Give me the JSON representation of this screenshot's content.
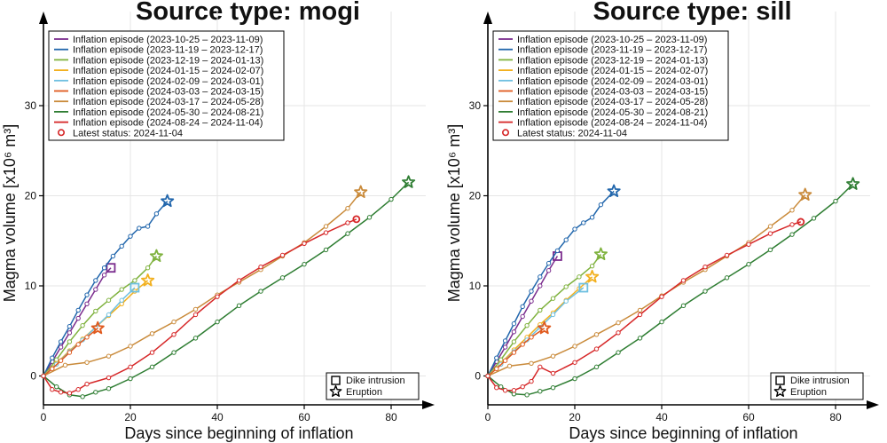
{
  "chart_data": [
    {
      "type": "line",
      "title": "Source type: mogi",
      "xlabel": "Days since beginning of inflation",
      "ylabel": "Magma volume [x10⁶ m³]",
      "xlim": [
        0,
        90
      ],
      "ylim": [
        -3,
        41
      ],
      "xticks": [
        0,
        20,
        40,
        60,
        80
      ],
      "yticks": [
        0,
        10,
        20,
        30
      ],
      "grid": true,
      "legend_position": "top-left",
      "series": [
        {
          "name": "Inflation episode (2023-10-25 – 2023-11-09)",
          "color": "#7b2d8e",
          "end_marker": "square",
          "x": [
            0,
            2,
            4,
            6,
            8,
            10,
            12,
            14,
            15.5
          ],
          "y": [
            0,
            1.6,
            3.2,
            4.8,
            6.4,
            8.0,
            9.6,
            11.2,
            12.0
          ]
        },
        {
          "name": "Inflation episode (2023-11-19 – 2023-12-17)",
          "color": "#2166ac",
          "end_marker": "star",
          "x": [
            0,
            2,
            4,
            6,
            8,
            10,
            12,
            14,
            16,
            18,
            20,
            22,
            24,
            26,
            28.5
          ],
          "y": [
            0,
            2.0,
            3.8,
            5.5,
            7.3,
            9.0,
            10.6,
            12.0,
            13.3,
            14.4,
            15.5,
            16.4,
            16.6,
            18.0,
            19.4
          ]
        },
        {
          "name": "Inflation episode (2023-12-19 – 2024-01-13)",
          "color": "#7fb23e",
          "end_marker": "star",
          "x": [
            0,
            3,
            6,
            9,
            12,
            15,
            18,
            21,
            24,
            26
          ],
          "y": [
            0,
            1.8,
            3.8,
            5.6,
            7.2,
            8.4,
            9.6,
            10.6,
            12.0,
            13.3
          ]
        },
        {
          "name": "Inflation episode (2024-01-15 – 2024-02-07)",
          "color": "#f2b01e",
          "end_marker": "star",
          "x": [
            0,
            3,
            6,
            9,
            12,
            15,
            18,
            21,
            24
          ],
          "y": [
            0,
            1.4,
            2.8,
            4.1,
            5.4,
            6.7,
            8.0,
            9.4,
            10.6
          ]
        },
        {
          "name": "Inflation episode (2024-02-09 – 2024-03-01)",
          "color": "#6fc0e0",
          "end_marker": "square",
          "x": [
            0,
            3,
            6,
            9,
            12,
            15,
            18,
            21
          ],
          "y": [
            0,
            1.3,
            2.7,
            4.0,
            5.4,
            6.8,
            8.4,
            9.8
          ]
        },
        {
          "name": "Inflation episode (2024-03-03 – 2024-03-15)",
          "color": "#e05a1e",
          "end_marker": "star",
          "x": [
            0,
            2,
            4,
            6,
            8,
            10,
            12.5
          ],
          "y": [
            0,
            0.8,
            1.7,
            2.6,
            3.5,
            4.3,
            5.3
          ]
        },
        {
          "name": "Inflation episode (2024-03-17 – 2024-05-28)",
          "color": "#c98a3a",
          "end_marker": "star",
          "x": [
            0,
            5,
            10,
            15,
            20,
            25,
            30,
            35,
            40,
            45,
            50,
            55,
            60,
            65,
            70,
            73
          ],
          "y": [
            0,
            1.2,
            1.5,
            2.2,
            3.3,
            4.7,
            6.0,
            7.4,
            9.0,
            10.4,
            11.8,
            13.3,
            14.8,
            16.6,
            18.6,
            20.4
          ]
        },
        {
          "name": "Inflation episode (2024-05-30 – 2024-08-21)",
          "color": "#2e7d32",
          "end_marker": "star",
          "x": [
            0,
            3,
            6,
            9,
            12,
            15,
            20,
            25,
            30,
            35,
            40,
            45,
            50,
            55,
            60,
            65,
            70,
            75,
            80,
            84
          ],
          "y": [
            0,
            -1.2,
            -2.1,
            -2.3,
            -1.8,
            -1.4,
            -0.3,
            1.0,
            2.6,
            4.2,
            6.0,
            7.8,
            9.4,
            10.9,
            12.4,
            14.0,
            15.8,
            17.6,
            19.6,
            21.5
          ]
        },
        {
          "name": "Inflation episode (2024-08-24 – 2024-11-04)",
          "color": "#d62728",
          "end_marker": "circle",
          "x": [
            0,
            2,
            4,
            6,
            8,
            10,
            15,
            20,
            25,
            30,
            35,
            40,
            45,
            50,
            55,
            60,
            65,
            70,
            72
          ],
          "y": [
            0,
            -1.5,
            -1.8,
            -1.9,
            -1.5,
            -0.9,
            -0.2,
            1.0,
            2.6,
            4.6,
            6.8,
            8.8,
            10.6,
            12.1,
            13.4,
            14.7,
            15.9,
            17.0,
            17.4
          ]
        }
      ],
      "legend_extra": "Latest status: 2024-11-04",
      "marker_legend": {
        "dike_intrusion": "Dike intrusion",
        "eruption": "Eruption"
      }
    },
    {
      "type": "line",
      "title": "Source type: sill",
      "xlabel": "Days since beginning of inflation",
      "ylabel": "Magma volume [x10⁶ m³]",
      "xlim": [
        0,
        90
      ],
      "ylim": [
        -3,
        41
      ],
      "xticks": [
        0,
        20,
        40,
        60,
        80
      ],
      "yticks": [
        0,
        10,
        20,
        30
      ],
      "grid": true,
      "legend_position": "top-left",
      "series": [
        {
          "name": "Inflation episode (2023-10-25 – 2023-11-09)",
          "color": "#7b2d8e",
          "end_marker": "square",
          "x": [
            0,
            2,
            4,
            6,
            8,
            10,
            12,
            14,
            16
          ],
          "y": [
            0,
            1.6,
            3.2,
            4.9,
            6.6,
            8.3,
            10.0,
            11.7,
            13.3
          ]
        },
        {
          "name": "Inflation episode (2023-11-19 – 2023-12-17)",
          "color": "#2166ac",
          "end_marker": "star",
          "x": [
            0,
            2,
            4,
            6,
            8,
            10,
            12,
            14,
            16,
            18,
            20,
            22,
            24,
            26,
            29
          ],
          "y": [
            0,
            2.0,
            3.9,
            5.8,
            7.7,
            9.4,
            11.0,
            12.5,
            13.9,
            15.1,
            16.3,
            17.0,
            17.6,
            19.0,
            20.5
          ]
        },
        {
          "name": "Inflation episode (2023-12-19 – 2024-01-13)",
          "color": "#7fb23e",
          "end_marker": "star",
          "x": [
            0,
            3,
            6,
            9,
            12,
            15,
            18,
            21,
            24,
            26
          ],
          "y": [
            0,
            1.8,
            3.8,
            5.6,
            7.3,
            8.6,
            9.9,
            11.0,
            12.2,
            13.5
          ]
        },
        {
          "name": "Inflation episode (2024-01-15 – 2024-02-07)",
          "color": "#f2b01e",
          "end_marker": "star",
          "x": [
            0,
            3,
            6,
            9,
            12,
            15,
            18,
            21,
            24
          ],
          "y": [
            0,
            1.4,
            2.9,
            4.3,
            5.7,
            7.0,
            8.4,
            9.7,
            11.0
          ]
        },
        {
          "name": "Inflation episode (2024-02-09 – 2024-03-01)",
          "color": "#6fc0e0",
          "end_marker": "square",
          "x": [
            0,
            3,
            6,
            9,
            12,
            15,
            18,
            22
          ],
          "y": [
            0,
            1.3,
            2.7,
            4.0,
            5.4,
            6.8,
            8.3,
            9.8
          ]
        },
        {
          "name": "Inflation episode (2024-03-03 – 2024-03-15)",
          "color": "#e05a1e",
          "end_marker": "star",
          "x": [
            0,
            2,
            4,
            6,
            8,
            10,
            13
          ],
          "y": [
            0,
            0.8,
            1.7,
            2.6,
            3.5,
            4.3,
            5.3
          ]
        },
        {
          "name": "Inflation episode (2024-03-17 – 2024-05-28)",
          "color": "#c98a3a",
          "end_marker": "star",
          "x": [
            0,
            5,
            10,
            15,
            20,
            25,
            30,
            35,
            40,
            45,
            50,
            55,
            60,
            65,
            70,
            73
          ],
          "y": [
            0,
            1.1,
            1.4,
            2.2,
            3.3,
            4.6,
            5.9,
            7.3,
            8.9,
            10.4,
            11.8,
            13.3,
            14.8,
            16.6,
            18.4,
            20.1
          ]
        },
        {
          "name": "Inflation episode (2024-05-30 – 2024-08-21)",
          "color": "#2e7d32",
          "end_marker": "star",
          "x": [
            0,
            3,
            6,
            9,
            12,
            15,
            20,
            25,
            30,
            35,
            40,
            45,
            50,
            55,
            60,
            65,
            70,
            75,
            80,
            84
          ],
          "y": [
            0,
            -1.2,
            -2.0,
            -2.1,
            -1.7,
            -1.3,
            -0.3,
            1.0,
            2.6,
            4.2,
            6.0,
            7.8,
            9.4,
            10.9,
            12.4,
            14.0,
            15.7,
            17.5,
            19.4,
            21.3
          ]
        },
        {
          "name": "Inflation episode (2024-08-24 – 2024-11-04)",
          "color": "#d62728",
          "end_marker": "circle",
          "x": [
            0,
            2,
            4,
            6,
            8,
            10,
            12,
            15,
            20,
            25,
            30,
            35,
            40,
            45,
            50,
            55,
            60,
            65,
            70,
            72
          ],
          "y": [
            0,
            -1.3,
            -1.6,
            -1.6,
            -1.2,
            -0.6,
            1.0,
            0.3,
            1.5,
            3.0,
            4.8,
            6.8,
            8.8,
            10.6,
            12.1,
            13.4,
            14.6,
            15.8,
            16.8,
            17.1
          ]
        }
      ],
      "legend_extra": "Latest status: 2024-11-04",
      "marker_legend": {
        "dike_intrusion": "Dike intrusion",
        "eruption": "Eruption"
      }
    }
  ]
}
